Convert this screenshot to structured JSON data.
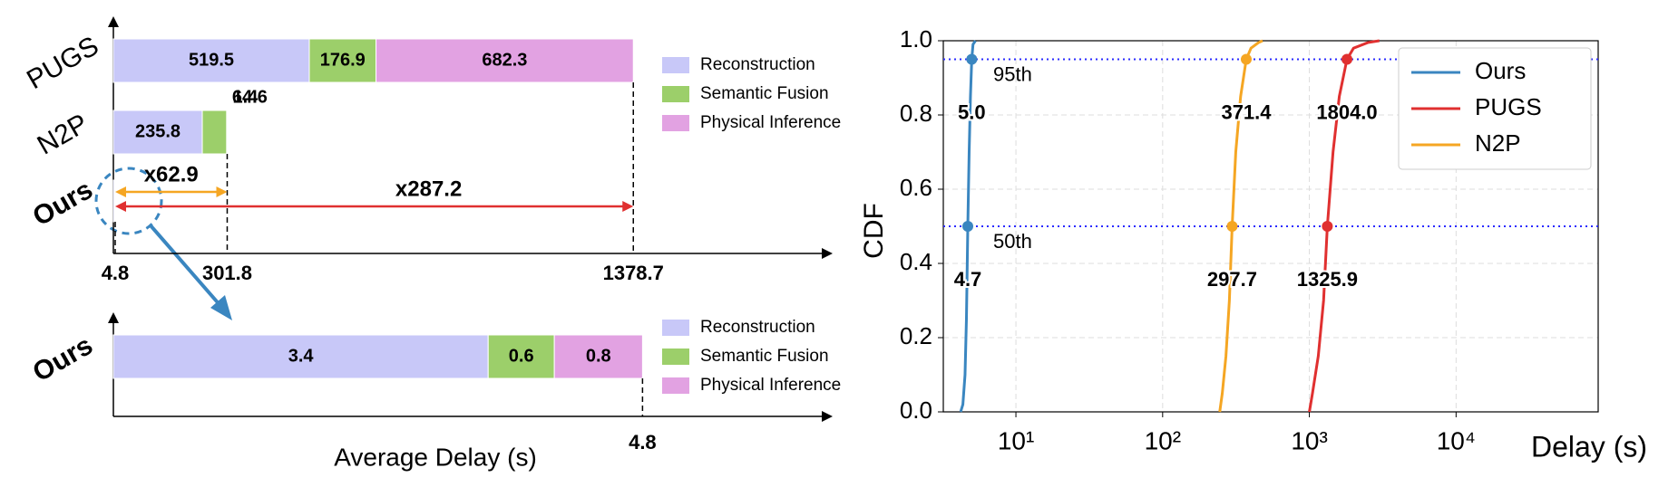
{
  "chart_data": [
    {
      "type": "bar",
      "orientation": "horizontal",
      "categories": [
        "PUGS",
        "N2P",
        "Ours"
      ],
      "category_colors": [
        "#000000",
        "#000000",
        "#4a90c2"
      ],
      "series": [
        {
          "name": "Reconstruction",
          "color": "#c8c8f8",
          "values": [
            519.5,
            235.8,
            3.4
          ]
        },
        {
          "name": "Semantic Fusion",
          "color": "#9ccf6a",
          "values": [
            176.9,
            64.6,
            0.6
          ]
        },
        {
          "name": "Physical Inference",
          "color": "#e2a2e2",
          "values": [
            682.3,
            1.4,
            0.8
          ]
        }
      ],
      "show_labels": [
        true,
        true,
        false
      ],
      "totals": [
        1378.7,
        301.8,
        4.8
      ],
      "speedups": [
        {
          "label": "x62.9",
          "color": "#f5a623"
        },
        {
          "label": "x287.2",
          "color": "#e03030"
        }
      ],
      "xlim": [
        0,
        1900
      ]
    },
    {
      "type": "bar",
      "orientation": "horizontal",
      "categories": [
        "Ours"
      ],
      "category_colors": [
        "#4a90c2"
      ],
      "series": [
        {
          "name": "Reconstruction",
          "color": "#c8c8f8",
          "values": [
            3.4
          ]
        },
        {
          "name": "Semantic Fusion",
          "color": "#9ccf6a",
          "values": [
            0.6
          ]
        },
        {
          "name": "Physical Inference",
          "color": "#e2a2e2",
          "values": [
            0.8
          ]
        }
      ],
      "totals": [
        4.8
      ],
      "xlabel": "Average Delay (s)",
      "xlim": [
        0,
        6.5
      ]
    },
    {
      "type": "line",
      "xscale": "log",
      "xlabel": "Delay (s)",
      "ylabel": "CDF",
      "xlim": [
        3.2,
        93000
      ],
      "ylim": [
        0,
        1
      ],
      "xticks": [
        {
          "value": 10,
          "label": "10¹"
        },
        {
          "value": 100,
          "label": "10²"
        },
        {
          "value": 1000,
          "label": "10³"
        },
        {
          "value": 10000,
          "label": "10⁴"
        }
      ],
      "yticks": [
        {
          "value": 0,
          "label": "0.0"
        },
        0.2,
        0.4,
        0.6,
        0.8,
        {
          "value": 1,
          "label": "1.0"
        }
      ],
      "grid": true,
      "legend": "upper right",
      "percentiles": [
        {
          "value": 0.5,
          "label": "50th"
        },
        {
          "value": 0.95,
          "label": "95th"
        }
      ],
      "series": [
        {
          "name": "Ours",
          "color": "#3a86c0",
          "x": [
            4.2,
            4.35,
            4.5,
            4.6,
            4.7,
            4.8,
            4.9,
            5.0,
            5.1,
            5.3
          ],
          "values": [
            0,
            0.02,
            0.1,
            0.25,
            0.5,
            0.7,
            0.85,
            0.95,
            0.99,
            1.0
          ],
          "percentile_x": [
            4.7,
            5.0
          ],
          "percentile_labels": [
            "4.7",
            "5.0"
          ]
        },
        {
          "name": "PUGS",
          "color": "#e03030",
          "x": [
            1000,
            1050,
            1150,
            1250,
            1325.9,
            1450,
            1600,
            1804,
            2000,
            2500,
            3000
          ],
          "values": [
            0,
            0.05,
            0.15,
            0.3,
            0.5,
            0.7,
            0.85,
            0.95,
            0.98,
            0.995,
            1.0
          ],
          "percentile_x": [
            1325.9,
            1804
          ],
          "percentile_labels": [
            "1325.9",
            "1804.0"
          ]
        },
        {
          "name": "N2P",
          "color": "#f5a623",
          "x": [
            245,
            255,
            270,
            285,
            297.7,
            315,
            340,
            371.4,
            400,
            450,
            480
          ],
          "values": [
            0,
            0.05,
            0.15,
            0.3,
            0.5,
            0.7,
            0.85,
            0.95,
            0.98,
            0.995,
            1.0
          ],
          "percentile_x": [
            297.7,
            371.4
          ],
          "percentile_labels": [
            "297.7",
            "371.4"
          ]
        }
      ]
    }
  ]
}
